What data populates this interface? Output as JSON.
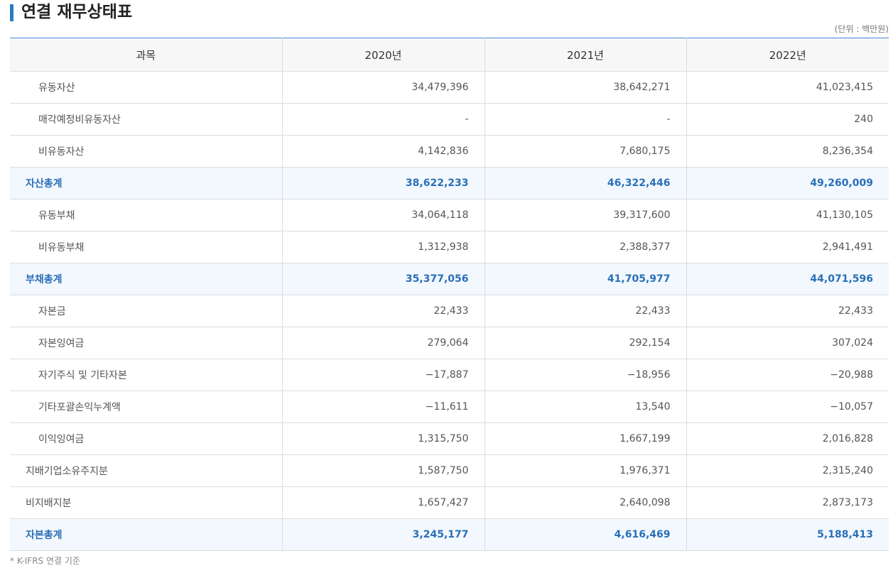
{
  "header": {
    "title": "연결 재무상태표",
    "unit": "(단위 : 백만원)"
  },
  "table": {
    "columns": [
      "과목",
      "2020년",
      "2021년",
      "2022년"
    ],
    "rows": [
      {
        "label": "유동자산",
        "style": "item",
        "values": [
          "34,479,396",
          "38,642,271",
          "41,023,415"
        ]
      },
      {
        "label": "매각예정비유동자산",
        "style": "item",
        "values": [
          "-",
          "-",
          "240"
        ]
      },
      {
        "label": "비유동자산",
        "style": "item",
        "values": [
          "4,142,836",
          "7,680,175",
          "8,236,354"
        ]
      },
      {
        "label": "자산총계",
        "style": "total",
        "values": [
          "38,622,233",
          "46,322,446",
          "49,260,009"
        ]
      },
      {
        "label": "유동부채",
        "style": "item",
        "values": [
          "34,064,118",
          "39,317,600",
          "41,130,105"
        ]
      },
      {
        "label": "비유동부채",
        "style": "item",
        "values": [
          "1,312,938",
          "2,388,377",
          "2,941,491"
        ]
      },
      {
        "label": "부채총계",
        "style": "total",
        "values": [
          "35,377,056",
          "41,705,977",
          "44,071,596"
        ]
      },
      {
        "label": "자본금",
        "style": "item",
        "values": [
          "22,433",
          "22,433",
          "22,433"
        ]
      },
      {
        "label": "자본잉여금",
        "style": "item",
        "values": [
          "279,064",
          "292,154",
          "307,024"
        ]
      },
      {
        "label": "자기주식 및 기타자본",
        "style": "item",
        "values": [
          "−17,887",
          "−18,956",
          "−20,988"
        ]
      },
      {
        "label": "기타포괄손익누계액",
        "style": "item",
        "values": [
          "−11,611",
          "13,540",
          "−10,057"
        ]
      },
      {
        "label": "이익잉여금",
        "style": "item",
        "values": [
          "1,315,750",
          "1,667,199",
          "2,016,828"
        ]
      },
      {
        "label": "지배기업소유주지분",
        "style": "group",
        "values": [
          "1,587,750",
          "1,976,371",
          "2,315,240"
        ]
      },
      {
        "label": "비지배지분",
        "style": "group",
        "values": [
          "1,657,427",
          "2,640,098",
          "2,873,173"
        ]
      },
      {
        "label": "자본총계",
        "style": "total",
        "values": [
          "3,245,177",
          "4,616,469",
          "5,188,413"
        ]
      }
    ]
  },
  "footnote": "* K-IFRS 연결 기준"
}
